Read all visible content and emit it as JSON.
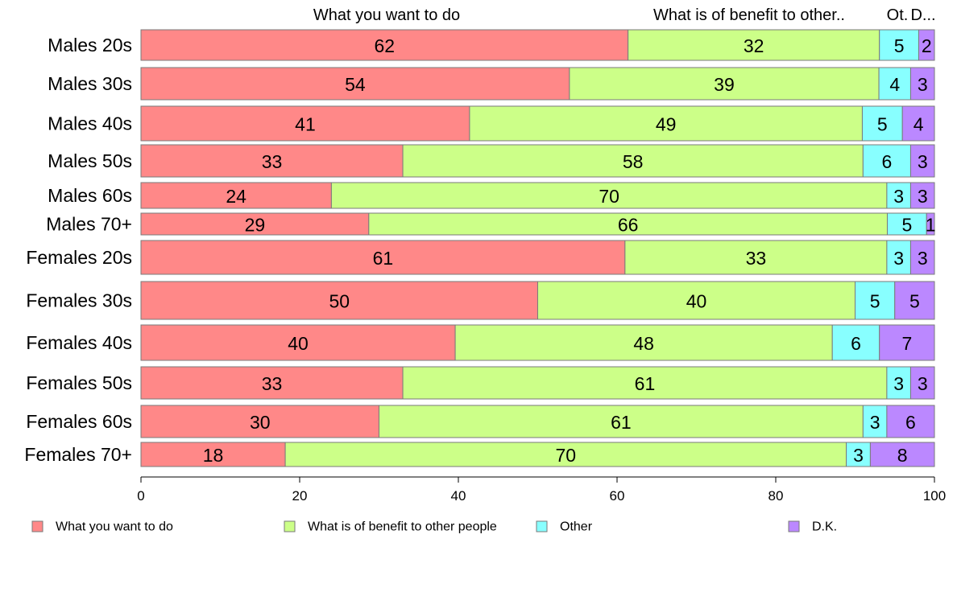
{
  "chart_data": {
    "type": "bar",
    "orientation": "horizontal",
    "stacked": true,
    "categories": [
      "Males 20s",
      "Males 30s",
      "Males 40s",
      "Males 50s",
      "Males 60s",
      "Males 70+",
      "Females 20s",
      "Females 30s",
      "Females 40s",
      "Females 50s",
      "Females 60s",
      "Females 70+"
    ],
    "series": [
      {
        "name": "What you want to do",
        "color": "#ff8888",
        "values": [
          62,
          54,
          41,
          33,
          24,
          29,
          61,
          50,
          40,
          33,
          30,
          18
        ]
      },
      {
        "name": "What is of benefit to other people",
        "color": "#ccff88",
        "values": [
          32,
          39,
          49,
          58,
          70,
          66,
          33,
          40,
          48,
          61,
          61,
          70
        ]
      },
      {
        "name": "Other",
        "color": "#88ffff",
        "values": [
          5,
          4,
          5,
          6,
          3,
          5,
          3,
          5,
          6,
          3,
          3,
          3
        ]
      },
      {
        "name": "D.K.",
        "color": "#bb88ff",
        "values": [
          2,
          3,
          4,
          3,
          3,
          1,
          3,
          5,
          7,
          3,
          6,
          8
        ]
      }
    ],
    "column_headers": [
      "What you want to do",
      "What is of benefit to other..",
      "Ot.",
      "D..."
    ],
    "xlim": [
      0,
      100
    ],
    "xticks": [
      "0",
      "20",
      "40",
      "60",
      "80",
      "100"
    ],
    "legend_position": "bottom",
    "grid": false
  }
}
